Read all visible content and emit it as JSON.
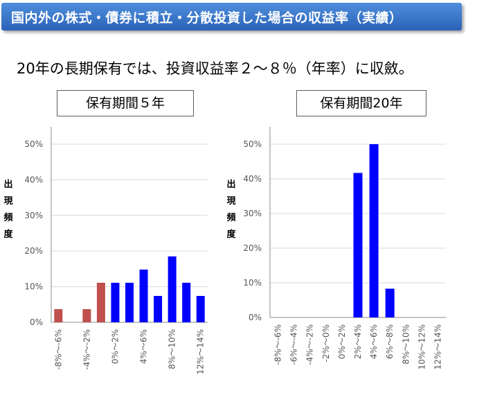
{
  "banner": {
    "title": "国内外の株式・債券に積立・分散投資した場合の収益率（実績）"
  },
  "subtitle": "20年の長期保有では、投資収益率２～８％（年率）に収斂。",
  "colors": {
    "banner": "#3a75c8",
    "negative": "#c0504d",
    "positive": "#0000ff",
    "grid": "#d9d9d9"
  },
  "chart_data": [
    {
      "type": "bar",
      "title": "保有期間５年",
      "ylabel": "出現頻度",
      "yticks": [
        "0%",
        "10%",
        "20%",
        "30%",
        "40%",
        "50%"
      ],
      "ylim": [
        0,
        50
      ],
      "categories": [
        "-8%～-6%",
        "-6%～-4%",
        "-4%～-2%",
        "-2%～0%",
        "0%～2%",
        "2%～4%",
        "4%～6%",
        "6%～8%",
        "8%～10%",
        "10%～12%",
        "12%～14%"
      ],
      "xtick_labels": [
        "-8%～-6%",
        "",
        "-4%～-2%",
        "",
        "0%～2%",
        "",
        "4%～6%",
        "",
        "8%～10%",
        "",
        "12%～14%"
      ],
      "values": [
        3.7,
        0,
        3.7,
        11.1,
        11.1,
        11.1,
        14.8,
        7.4,
        18.5,
        11.1,
        7.4
      ],
      "bar_colors": [
        "negative",
        "negative",
        "negative",
        "negative",
        "positive",
        "positive",
        "positive",
        "positive",
        "positive",
        "positive",
        "positive"
      ],
      "grid": true
    },
    {
      "type": "bar",
      "title": "保有期間20年",
      "ylabel": "出現頻度",
      "yticks": [
        "0%",
        "10%",
        "20%",
        "30%",
        "40%",
        "50%"
      ],
      "ylim": [
        0,
        50
      ],
      "categories": [
        "-8%～-6%",
        "-6%～-4%",
        "-4%～-2%",
        "-2%～0%",
        "0%～2%",
        "2%～4%",
        "4%～6%",
        "6%～8%",
        "8%～10%",
        "10%～12%",
        "12%～14%"
      ],
      "xtick_labels": [
        "-8%～-6%",
        "-6%～-4%",
        "-4%～-2%",
        "-2%～0%",
        "0%～2%",
        "2%～4%",
        "4%～6%",
        "6%～8%",
        "8%～10%",
        "10%～12%",
        "12%～14%"
      ],
      "values": [
        0,
        0,
        0,
        0,
        0,
        41.7,
        50,
        8.3,
        0,
        0,
        0
      ],
      "bar_colors": [
        "positive",
        "positive",
        "positive",
        "positive",
        "positive",
        "positive",
        "positive",
        "positive",
        "positive",
        "positive",
        "positive"
      ],
      "grid": true
    }
  ]
}
